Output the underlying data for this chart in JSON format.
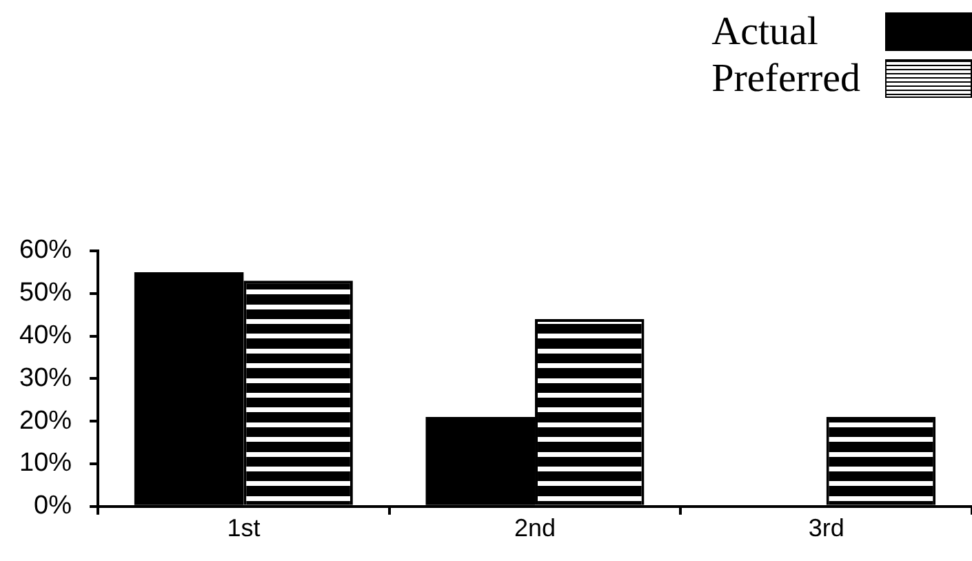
{
  "chart_data": {
    "type": "bar",
    "categories": [
      "1st",
      "2nd",
      "3rd"
    ],
    "series": [
      {
        "name": "Actual",
        "color": "#000000",
        "values": [
          55,
          21,
          0
        ]
      },
      {
        "name": "Preferred",
        "color": "#000000",
        "values": [
          53,
          44,
          21
        ]
      }
    ],
    "ylim": [
      0,
      60
    ],
    "yticks": [
      {
        "value": 0,
        "label": "0%"
      },
      {
        "value": 10,
        "label": "10%"
      },
      {
        "value": 20,
        "label": "20%"
      },
      {
        "value": 30,
        "label": "30%"
      },
      {
        "value": 40,
        "label": "40%"
      },
      {
        "value": 50,
        "label": "50%"
      },
      {
        "value": 60,
        "label": "60%"
      }
    ],
    "legend": "top right"
  }
}
